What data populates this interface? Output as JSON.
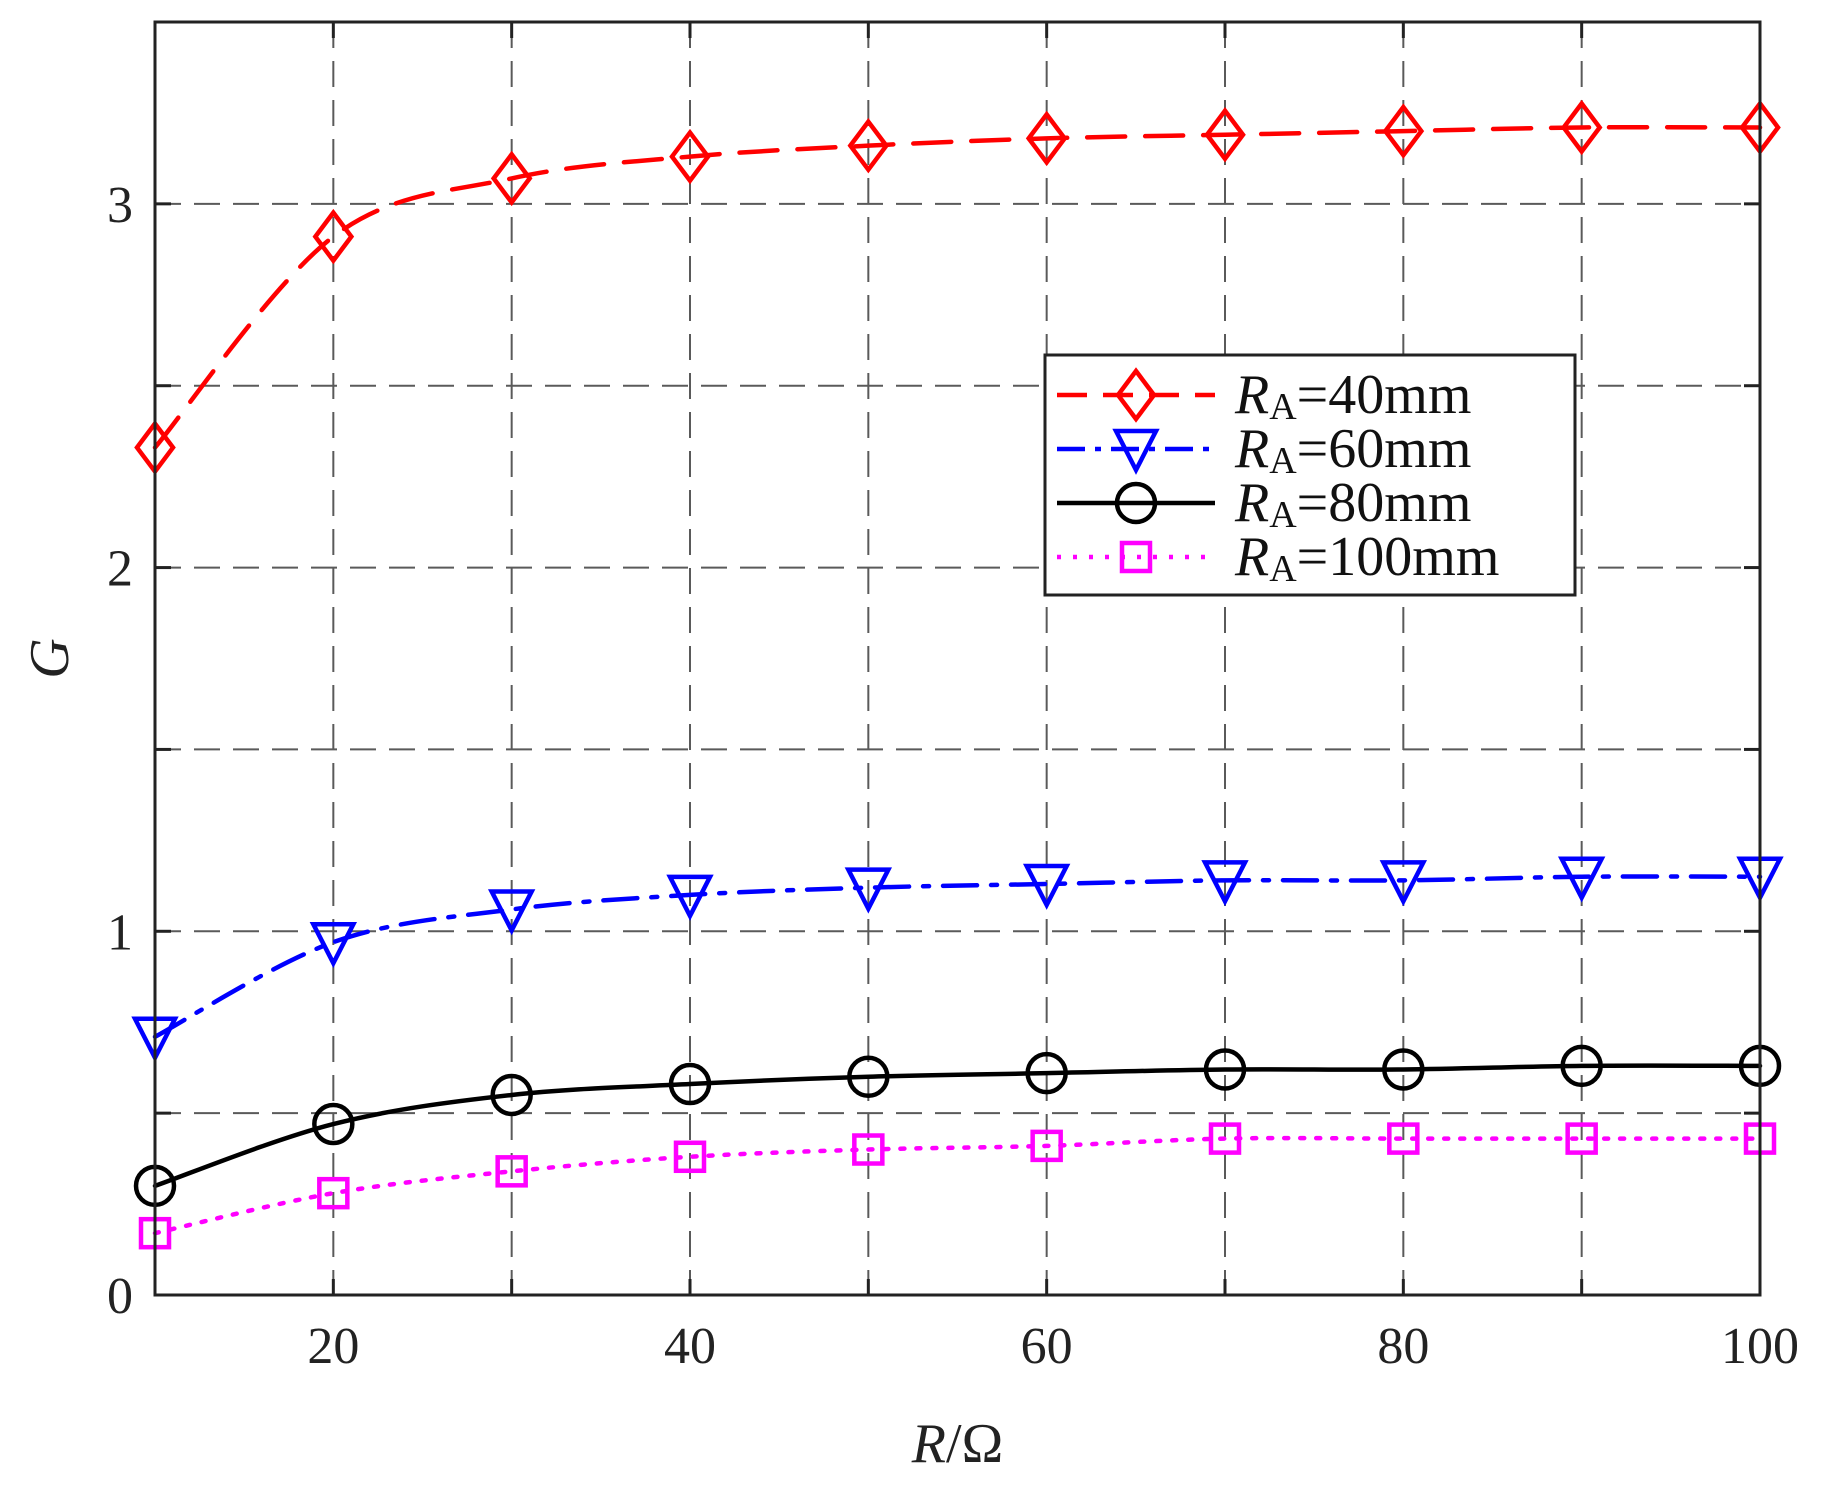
{
  "chart_data": {
    "type": "line",
    "title": "",
    "xlabel": "R/Ω",
    "xlabel_italic": "R",
    "xlabel_rest": "/Ω",
    "ylabel": "G",
    "xlim": [
      10,
      100
    ],
    "ylim": [
      0,
      3.5
    ],
    "grid": true,
    "legend_position": "center-right",
    "x_ticks": [
      20,
      40,
      60,
      80,
      100
    ],
    "x_tick_labels": [
      "20",
      "40",
      "60",
      "80",
      "100"
    ],
    "x_grid": [
      10,
      20,
      30,
      40,
      50,
      60,
      70,
      80,
      90,
      100
    ],
    "y_ticks": [
      0,
      1,
      2,
      3
    ],
    "y_tick_labels": [
      "0",
      "1",
      "2",
      "3"
    ],
    "y_grid": [
      0.5,
      1,
      1.5,
      2,
      2.5,
      3
    ],
    "x": [
      10,
      20,
      30,
      40,
      50,
      60,
      70,
      80,
      90,
      100
    ],
    "series": [
      {
        "name": "RA=40mm",
        "label_main": "R",
        "label_sub": "A",
        "label_rest": "=40mm",
        "color": "#ff0000",
        "line_style": "dashed",
        "marker": "diamond",
        "values": [
          2.33,
          2.91,
          3.07,
          3.13,
          3.16,
          3.18,
          3.19,
          3.2,
          3.21,
          3.21
        ]
      },
      {
        "name": "RA=60mm",
        "label_main": "R",
        "label_sub": "A",
        "label_rest": "=60mm",
        "color": "#0000ff",
        "line_style": "dashdot",
        "marker": "triangle-down",
        "values": [
          0.71,
          0.97,
          1.06,
          1.1,
          1.12,
          1.13,
          1.14,
          1.14,
          1.15,
          1.15
        ]
      },
      {
        "name": "RA=80mm",
        "label_main": "R",
        "label_sub": "A",
        "label_rest": "=80mm",
        "color": "#000000",
        "line_style": "solid",
        "marker": "circle",
        "values": [
          0.3,
          0.47,
          0.55,
          0.58,
          0.6,
          0.61,
          0.62,
          0.62,
          0.63,
          0.63
        ]
      },
      {
        "name": "RA=100mm",
        "label_main": "R",
        "label_sub": "A",
        "label_rest": "=100mm",
        "color": "#ff00ff",
        "line_style": "dotted",
        "marker": "square",
        "values": [
          0.17,
          0.28,
          0.34,
          0.38,
          0.4,
          0.41,
          0.43,
          0.43,
          0.43,
          0.43
        ]
      }
    ]
  }
}
